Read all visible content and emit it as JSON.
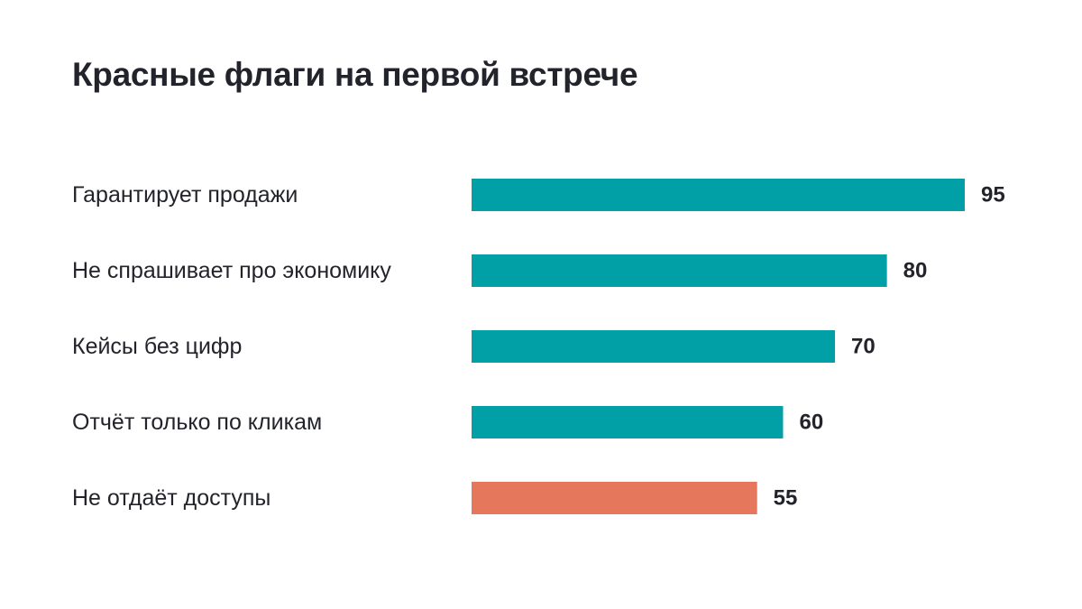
{
  "chart_data": {
    "type": "bar",
    "orientation": "horizontal",
    "title": "Красные флаги на первой встрече",
    "categories": [
      "Гарантирует продажи",
      "Не спрашивает про экономику",
      "Кейсы без цифр",
      "Отчёт только по кликам",
      "Не отдаёт доступы"
    ],
    "values": [
      95,
      80,
      70,
      60,
      55
    ],
    "value_labels": [
      "95",
      "80",
      "70",
      "60",
      "55"
    ],
    "bar_colors": [
      "#00a0a6",
      "#00a0a6",
      "#00a0a6",
      "#00a0a6",
      "#e5785c"
    ],
    "highlight_color": "#e5785c",
    "base_color": "#00a0a6",
    "xlim": [
      0,
      95
    ],
    "grid": false,
    "legend": "none"
  }
}
